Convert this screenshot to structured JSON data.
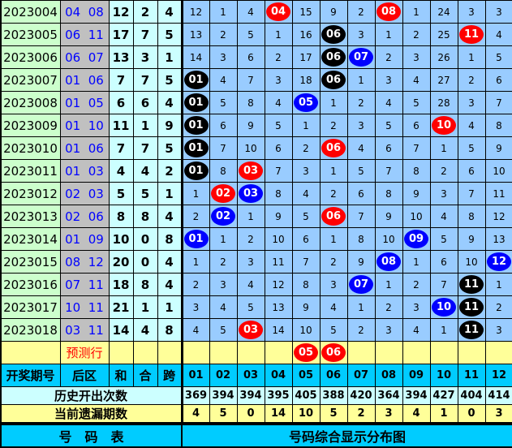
{
  "colors": {
    "red": "#ff0000",
    "black": "#000000",
    "blue": "#0000ff"
  },
  "rows": [
    {
      "period": "2023004",
      "back": "04  08",
      "sum": "12",
      "he": "2",
      "kua": "4",
      "cells": [
        "12",
        "1",
        "4",
        {
          "t": "04",
          "c": "red"
        },
        "15",
        "9",
        "2",
        {
          "t": "08",
          "c": "red"
        },
        "1",
        "24",
        "3",
        "3"
      ]
    },
    {
      "period": "2023005",
      "back": "06  11",
      "sum": "17",
      "he": "7",
      "kua": "5",
      "cells": [
        "13",
        "2",
        "5",
        "1",
        "16",
        {
          "t": "06",
          "c": "black"
        },
        "3",
        "1",
        "2",
        "25",
        {
          "t": "11",
          "c": "red"
        },
        "4"
      ]
    },
    {
      "period": "2023006",
      "back": "06  07",
      "sum": "13",
      "he": "3",
      "kua": "1",
      "cells": [
        "14",
        "3",
        "6",
        "2",
        "17",
        {
          "t": "06",
          "c": "black"
        },
        {
          "t": "07",
          "c": "blue"
        },
        "2",
        "3",
        "26",
        "1",
        "5"
      ]
    },
    {
      "period": "2023007",
      "back": "01  06",
      "sum": "7",
      "he": "7",
      "kua": "5",
      "cells": [
        {
          "t": "01",
          "c": "black"
        },
        "4",
        "7",
        "3",
        "18",
        {
          "t": "06",
          "c": "black"
        },
        "1",
        "3",
        "4",
        "27",
        "2",
        "6"
      ]
    },
    {
      "period": "2023008",
      "back": "01  05",
      "sum": "6",
      "he": "6",
      "kua": "4",
      "cells": [
        {
          "t": "01",
          "c": "black"
        },
        "5",
        "8",
        "4",
        {
          "t": "05",
          "c": "blue"
        },
        "1",
        "2",
        "4",
        "5",
        "28",
        "3",
        "7"
      ]
    },
    {
      "period": "2023009",
      "back": "01  10",
      "sum": "11",
      "he": "1",
      "kua": "9",
      "cells": [
        {
          "t": "01",
          "c": "black"
        },
        "6",
        "9",
        "5",
        "1",
        "2",
        "3",
        "5",
        "6",
        {
          "t": "10",
          "c": "red"
        },
        "4",
        "8"
      ]
    },
    {
      "period": "2023010",
      "back": "01  06",
      "sum": "7",
      "he": "7",
      "kua": "5",
      "cells": [
        {
          "t": "01",
          "c": "black"
        },
        "7",
        "10",
        "6",
        "2",
        {
          "t": "06",
          "c": "red"
        },
        "4",
        "6",
        "7",
        "1",
        "5",
        "9"
      ]
    },
    {
      "period": "2023011",
      "back": "01  03",
      "sum": "4",
      "he": "4",
      "kua": "2",
      "cells": [
        {
          "t": "01",
          "c": "black"
        },
        "8",
        {
          "t": "03",
          "c": "red"
        },
        "7",
        "3",
        "1",
        "5",
        "7",
        "8",
        "2",
        "6",
        "10"
      ]
    },
    {
      "period": "2023012",
      "back": "02  03",
      "sum": "5",
      "he": "5",
      "kua": "1",
      "cells": [
        "1",
        {
          "t": "02",
          "c": "red"
        },
        {
          "t": "03",
          "c": "blue"
        },
        "8",
        "4",
        "2",
        "6",
        "8",
        "9",
        "3",
        "7",
        "11"
      ]
    },
    {
      "period": "2023013",
      "back": "02  06",
      "sum": "8",
      "he": "8",
      "kua": "4",
      "cells": [
        "2",
        {
          "t": "02",
          "c": "blue"
        },
        "1",
        "9",
        "5",
        {
          "t": "06",
          "c": "red"
        },
        "7",
        "9",
        "10",
        "4",
        "8",
        "12"
      ]
    },
    {
      "period": "2023014",
      "back": "01  09",
      "sum": "10",
      "he": "0",
      "kua": "8",
      "cells": [
        {
          "t": "01",
          "c": "blue"
        },
        "1",
        "2",
        "10",
        "6",
        "1",
        "8",
        "10",
        {
          "t": "09",
          "c": "blue"
        },
        "5",
        "9",
        "13"
      ]
    },
    {
      "period": "2023015",
      "back": "08  12",
      "sum": "20",
      "he": "0",
      "kua": "4",
      "cells": [
        "1",
        "2",
        "3",
        "11",
        "7",
        "2",
        "9",
        {
          "t": "08",
          "c": "blue"
        },
        "1",
        "6",
        "10",
        {
          "t": "12",
          "c": "blue"
        }
      ]
    },
    {
      "period": "2023016",
      "back": "07  11",
      "sum": "18",
      "he": "8",
      "kua": "4",
      "cells": [
        "2",
        "3",
        "4",
        "12",
        "8",
        "3",
        {
          "t": "07",
          "c": "blue"
        },
        "1",
        "2",
        "7",
        {
          "t": "11",
          "c": "black"
        },
        "1"
      ]
    },
    {
      "period": "2023017",
      "back": "10  11",
      "sum": "21",
      "he": "1",
      "kua": "1",
      "cells": [
        "3",
        "4",
        "5",
        "13",
        "9",
        "4",
        "1",
        "2",
        "3",
        {
          "t": "10",
          "c": "blue"
        },
        {
          "t": "11",
          "c": "black"
        },
        "2"
      ]
    },
    {
      "period": "2023018",
      "back": "03  11",
      "sum": "14",
      "he": "4",
      "kua": "8",
      "cells": [
        "4",
        "5",
        {
          "t": "03",
          "c": "red"
        },
        "14",
        "10",
        "5",
        "2",
        "3",
        "4",
        "1",
        {
          "t": "11",
          "c": "black"
        },
        "3"
      ]
    }
  ],
  "prediction": {
    "label": "预测行",
    "cells": [
      "",
      "",
      "",
      "",
      {
        "t": "05",
        "c": "red"
      },
      {
        "t": "06",
        "c": "red"
      },
      "",
      "",
      "",
      "",
      "",
      ""
    ]
  },
  "header": {
    "period": "开奖期号",
    "back": "后区",
    "sum": "和",
    "he": "合",
    "kua": "跨",
    "numbers": [
      "01",
      "02",
      "03",
      "04",
      "05",
      "06",
      "07",
      "08",
      "09",
      "10",
      "11",
      "12"
    ]
  },
  "history": {
    "label": "历史开出次数",
    "values": [
      "369",
      "394",
      "394",
      "395",
      "405",
      "388",
      "420",
      "364",
      "394",
      "427",
      "404",
      "414"
    ]
  },
  "missing": {
    "label": "当前遗漏期数",
    "values": [
      "4",
      "5",
      "0",
      "14",
      "10",
      "5",
      "2",
      "3",
      "4",
      "1",
      "0",
      "3"
    ]
  },
  "footer": {
    "left": "号　码　表",
    "right": "号码综合显示分布图"
  }
}
